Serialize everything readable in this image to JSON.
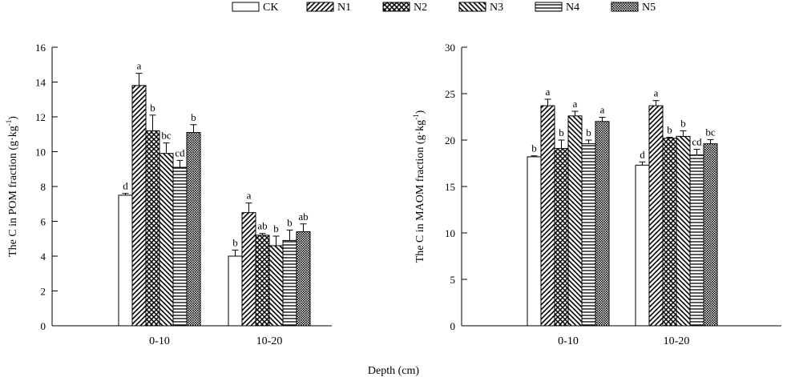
{
  "chart_data": {
    "type": "bar",
    "xlabel": "Depth (cm)",
    "legend": {
      "placement": "top-center",
      "entries": [
        {
          "name": "CK",
          "pattern": "empty"
        },
        {
          "name": "N1",
          "pattern": "diagonal-forward"
        },
        {
          "name": "N2",
          "pattern": "crosshatch"
        },
        {
          "name": "N3",
          "pattern": "diagonal-backward"
        },
        {
          "name": "N4",
          "pattern": "horizontal"
        },
        {
          "name": "N5",
          "pattern": "dots"
        }
      ]
    },
    "panels": [
      {
        "id": "pom",
        "ylabel_main": "The C in POM fraction (g·kg",
        "ylabel_sup": "-1",
        "ylabel_close": ")",
        "ylim": [
          0,
          16
        ],
        "yticks": [
          0,
          2,
          4,
          6,
          8,
          10,
          12,
          14,
          16
        ],
        "categories": [
          "0-10",
          "10-20"
        ],
        "series": [
          {
            "name": "CK",
            "values": [
              7.5,
              4.0
            ],
            "errors": [
              0.1,
              0.35
            ],
            "letters": [
              "d",
              "b"
            ]
          },
          {
            "name": "N1",
            "values": [
              13.8,
              6.5
            ],
            "errors": [
              0.7,
              0.55
            ],
            "letters": [
              "a",
              "a"
            ]
          },
          {
            "name": "N2",
            "values": [
              11.2,
              5.2
            ],
            "errors": [
              0.9,
              0.1
            ],
            "letters": [
              "b",
              "ab"
            ]
          },
          {
            "name": "N3",
            "values": [
              9.9,
              4.6
            ],
            "errors": [
              0.6,
              0.55
            ],
            "letters": [
              "bc",
              "b"
            ]
          },
          {
            "name": "N4",
            "values": [
              9.1,
              4.9
            ],
            "errors": [
              0.4,
              0.6
            ],
            "letters": [
              "cd",
              "b"
            ]
          },
          {
            "name": "N5",
            "values": [
              11.1,
              5.4
            ],
            "errors": [
              0.45,
              0.45
            ],
            "letters": [
              "b",
              "ab"
            ]
          }
        ]
      },
      {
        "id": "maom",
        "ylabel_main": "The C in  MAOM fraction (g·kg",
        "ylabel_sup": "-1",
        "ylabel_close": ")",
        "ylim": [
          0,
          30
        ],
        "yticks": [
          0,
          5,
          10,
          15,
          20,
          25,
          30
        ],
        "categories": [
          "0-10",
          "10-20"
        ],
        "series": [
          {
            "name": "CK",
            "values": [
              18.2,
              17.3
            ],
            "errors": [
              0.1,
              0.35
            ],
            "letters": [
              "b",
              "d"
            ]
          },
          {
            "name": "N1",
            "values": [
              23.7,
              23.7
            ],
            "errors": [
              0.7,
              0.55
            ],
            "letters": [
              "a",
              "a"
            ]
          },
          {
            "name": "N2",
            "values": [
              19.1,
              20.2
            ],
            "errors": [
              0.9,
              0.1
            ],
            "letters": [
              "b",
              "b"
            ]
          },
          {
            "name": "N3",
            "values": [
              22.6,
              20.4
            ],
            "errors": [
              0.5,
              0.6
            ],
            "letters": [
              "a",
              "b"
            ]
          },
          {
            "name": "N4",
            "values": [
              19.6,
              18.4
            ],
            "errors": [
              0.4,
              0.6
            ],
            "letters": [
              "b",
              "cd"
            ]
          },
          {
            "name": "N5",
            "values": [
              22.0,
              19.6
            ],
            "errors": [
              0.45,
              0.45
            ],
            "letters": [
              "a",
              "bc"
            ]
          }
        ]
      }
    ]
  }
}
